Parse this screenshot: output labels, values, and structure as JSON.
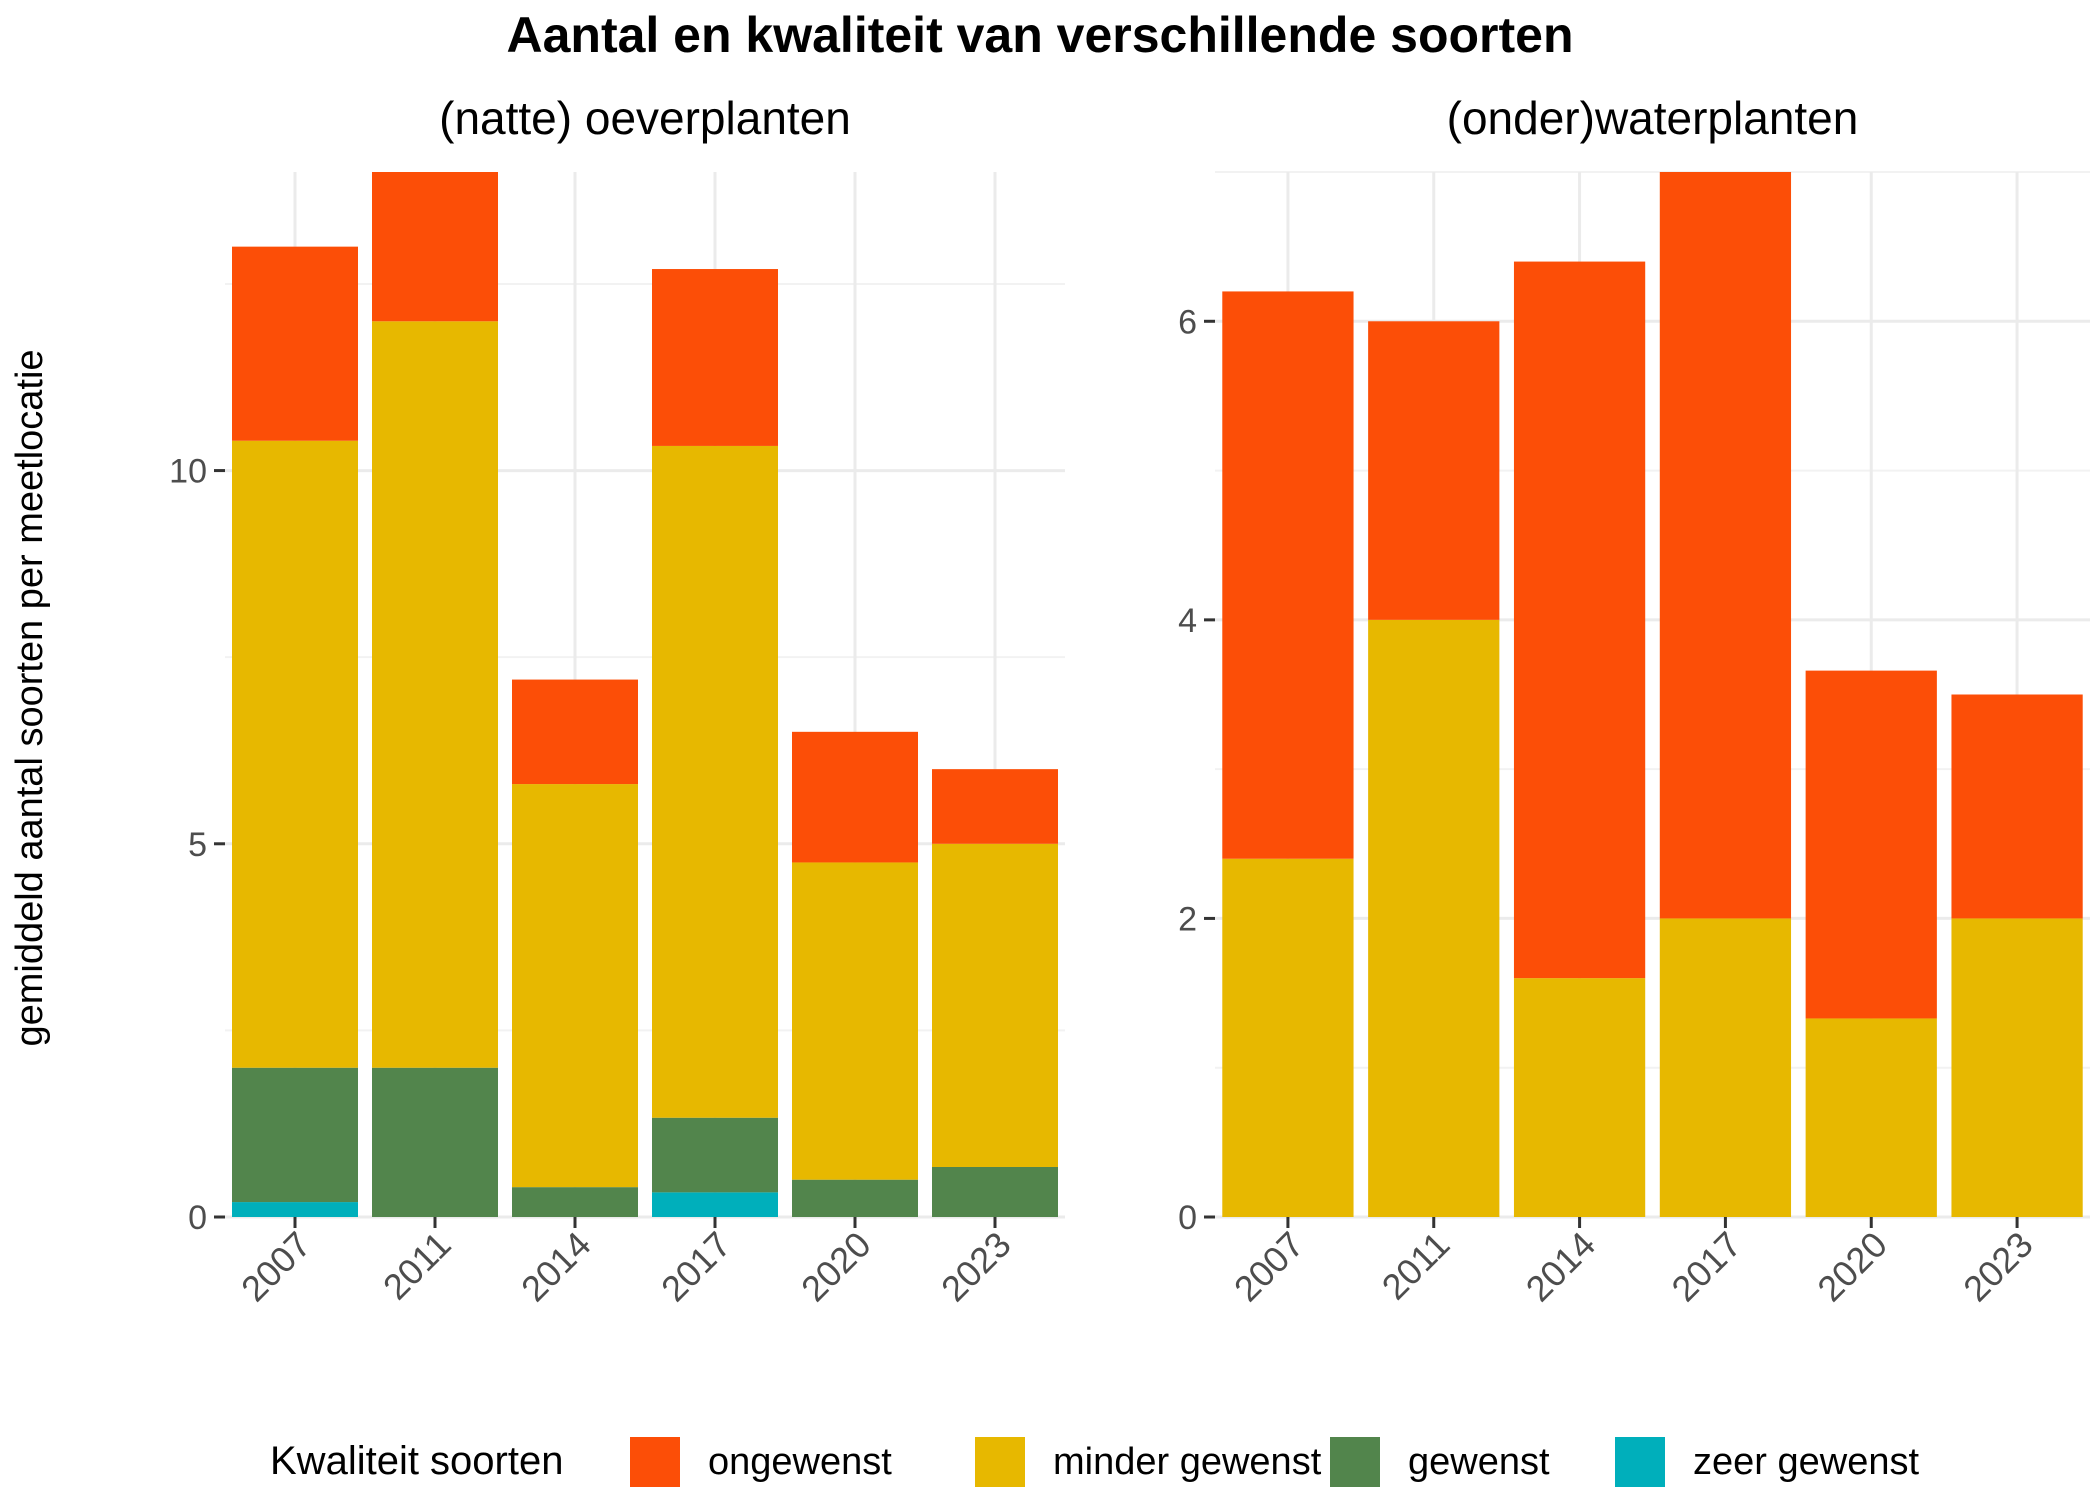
{
  "title": "Aantal en kwaliteit van verschillende soorten",
  "ylabel": "gemiddeld aantal soorten per meetlocatie",
  "legend": {
    "title": "Kwaliteit soorten",
    "position": "bottom",
    "items": [
      {
        "label": "ongewenst",
        "color": "#FC4E07"
      },
      {
        "label": "minder gewenst",
        "color": "#E7B800"
      },
      {
        "label": "gewenst",
        "color": "#52854C"
      },
      {
        "label": "zeer gewenst",
        "color": "#00AFBB"
      }
    ]
  },
  "chart_data": [
    {
      "type": "bar",
      "stacked": true,
      "title": "(natte) oeverplanten",
      "categories": [
        "2007",
        "2011",
        "2014",
        "2017",
        "2020",
        "2023"
      ],
      "ylim": [
        0,
        14
      ],
      "yticks": [
        0,
        5,
        10
      ],
      "grid": true,
      "series": [
        {
          "name": "zeer gewenst",
          "values": [
            0.2,
            0,
            0,
            0.33,
            0,
            0
          ]
        },
        {
          "name": "gewenst",
          "values": [
            1.8,
            2.0,
            0.4,
            1.0,
            0.5,
            0.67
          ]
        },
        {
          "name": "minder gewenst",
          "values": [
            8.4,
            10.0,
            5.4,
            9.0,
            4.25,
            4.33
          ]
        },
        {
          "name": "ongewenst",
          "values": [
            2.6,
            2.0,
            1.4,
            2.37,
            1.75,
            1.0
          ]
        }
      ]
    },
    {
      "type": "bar",
      "stacked": true,
      "title": "(onder)waterplanten",
      "categories": [
        "2007",
        "2011",
        "2014",
        "2017",
        "2020",
        "2023"
      ],
      "ylim": [
        0,
        7
      ],
      "yticks": [
        0,
        2,
        4,
        6
      ],
      "grid": true,
      "series": [
        {
          "name": "zeer gewenst",
          "values": [
            0,
            0,
            0,
            0,
            0,
            0
          ]
        },
        {
          "name": "gewenst",
          "values": [
            0,
            0,
            0,
            0,
            0,
            0
          ]
        },
        {
          "name": "minder gewenst",
          "values": [
            2.4,
            4.0,
            1.6,
            2.0,
            1.33,
            2.0
          ]
        },
        {
          "name": "ongewenst",
          "values": [
            3.8,
            2.0,
            4.8,
            5.0,
            2.33,
            1.5
          ]
        }
      ]
    }
  ]
}
